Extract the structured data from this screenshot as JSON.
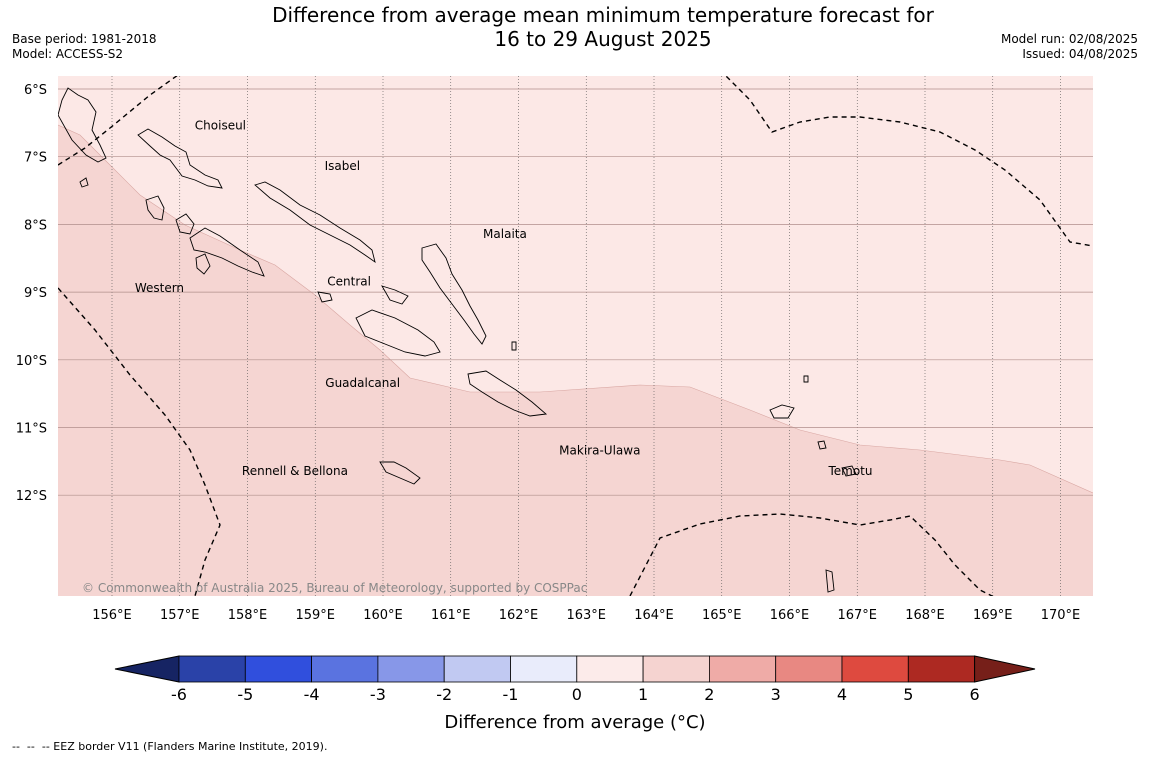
{
  "header": {
    "title_line1": "Difference from average mean minimum temperature forecast for",
    "title_line2": "16 to 29 August 2025",
    "base_period": "Base period: 1981-2018",
    "model": "Model: ACCESS-S2",
    "model_run": "Model run: 02/08/2025",
    "issued": "Issued: 04/08/2025"
  },
  "map": {
    "lat_labels": [
      "6°S",
      "7°S",
      "8°S",
      "9°S",
      "10°S",
      "11°S",
      "12°S"
    ],
    "lon_labels": [
      "156°E",
      "157°E",
      "158°E",
      "159°E",
      "160°E",
      "161°E",
      "162°E",
      "163°E",
      "164°E",
      "165°E",
      "166°E",
      "167°E",
      "168°E",
      "169°E",
      "170°E"
    ],
    "regions": [
      {
        "name": "Choiseul",
        "lon": 157.6,
        "lat": -6.6
      },
      {
        "name": "Isabel",
        "lon": 159.4,
        "lat": -7.2
      },
      {
        "name": "Malaita",
        "lon": 161.8,
        "lat": -8.2
      },
      {
        "name": "Western",
        "lon": 156.7,
        "lat": -9.0
      },
      {
        "name": "Central",
        "lon": 159.5,
        "lat": -8.9
      },
      {
        "name": "Guadalcanal",
        "lon": 159.7,
        "lat": -10.4
      },
      {
        "name": "Makira-Ulawa",
        "lon": 163.2,
        "lat": -11.4
      },
      {
        "name": "Rennell & Bellona",
        "lon": 158.7,
        "lat": -11.7
      },
      {
        "name": "Temotu",
        "lon": 166.9,
        "lat": -11.7
      }
    ],
    "copyright": "© Commonwealth of Australia 2025, Bureau of Meteorology, supported by COSPPac",
    "fill_colors": {
      "zero_to_one": "#fce8e6",
      "one_to_two": "#f5d5d2"
    }
  },
  "colorbar": {
    "label": "Difference from average (°C)",
    "ticks": [
      "-6",
      "-5",
      "-4",
      "-3",
      "-2",
      "-1",
      "0",
      "1",
      "2",
      "3",
      "4",
      "5",
      "6"
    ],
    "colors": [
      "#162463",
      "#2a42a8",
      "#304fdd",
      "#5a73e0",
      "#8797e8",
      "#c1c9f2",
      "#e9ecfb",
      "#fcebea",
      "#f5d3d0",
      "#efaba7",
      "#e88882",
      "#de4a3f",
      "#ad2922",
      "#761f19"
    ]
  },
  "footnote": "--  --  -- EEZ border V11 (Flanders Marine Institute, 2019)."
}
